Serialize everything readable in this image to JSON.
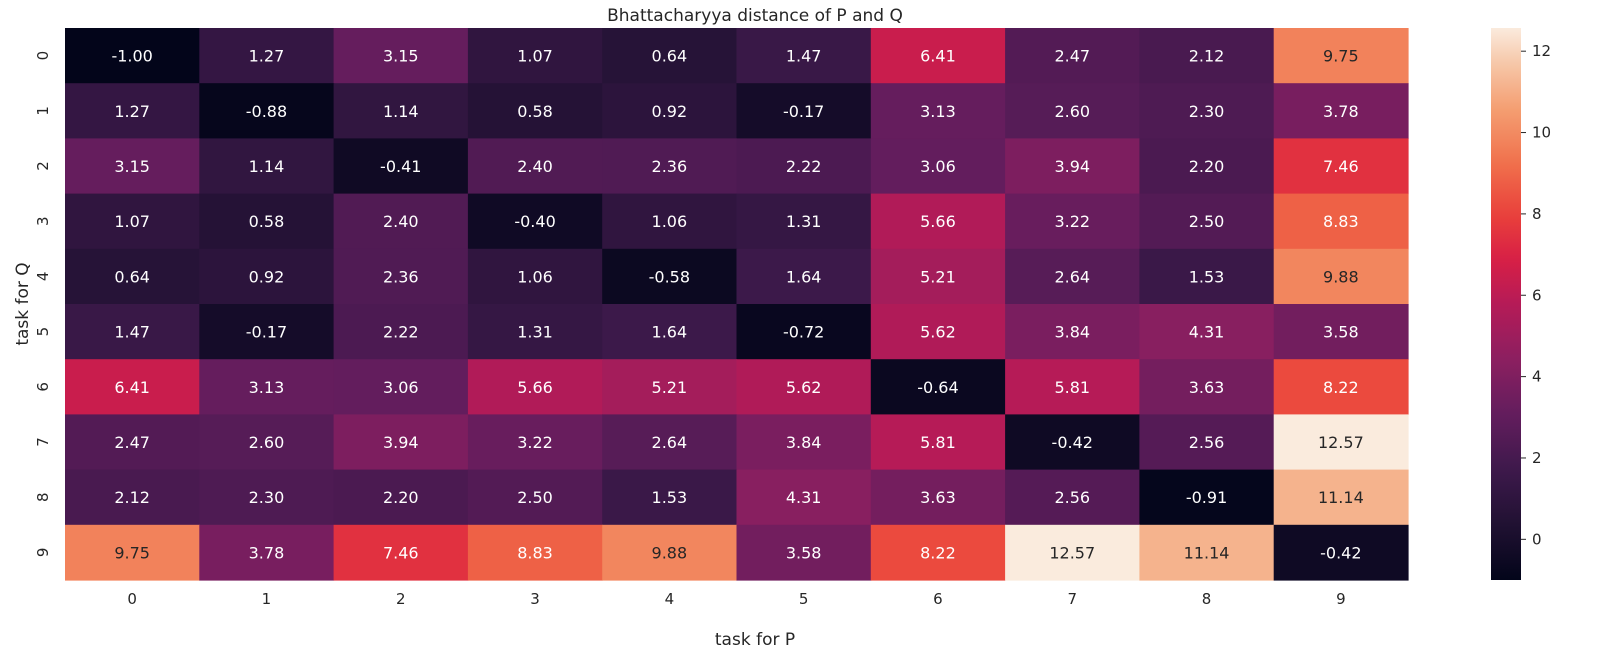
{
  "chart_data": {
    "type": "heatmap",
    "title": "Bhattacharyya distance of P and Q",
    "xlabel": "task for P",
    "ylabel": "task for Q",
    "x_categories": [
      "0",
      "1",
      "2",
      "3",
      "4",
      "5",
      "6",
      "7",
      "8",
      "9"
    ],
    "y_categories": [
      "0",
      "1",
      "2",
      "3",
      "4",
      "5",
      "6",
      "7",
      "8",
      "9"
    ],
    "values": [
      [
        -1.0,
        1.27,
        3.15,
        1.07,
        0.64,
        1.47,
        6.41,
        2.47,
        2.12,
        9.75
      ],
      [
        1.27,
        -0.88,
        1.14,
        0.58,
        0.92,
        -0.17,
        3.13,
        2.6,
        2.3,
        3.78
      ],
      [
        3.15,
        1.14,
        -0.41,
        2.4,
        2.36,
        2.22,
        3.06,
        3.94,
        2.2,
        7.46
      ],
      [
        1.07,
        0.58,
        2.4,
        -0.4,
        1.06,
        1.31,
        5.66,
        3.22,
        2.5,
        8.83
      ],
      [
        0.64,
        0.92,
        2.36,
        1.06,
        -0.58,
        1.64,
        5.21,
        2.64,
        1.53,
        9.88
      ],
      [
        1.47,
        -0.17,
        2.22,
        1.31,
        1.64,
        -0.72,
        5.62,
        3.84,
        4.31,
        3.58
      ],
      [
        6.41,
        3.13,
        3.06,
        5.66,
        5.21,
        5.62,
        -0.64,
        5.81,
        3.63,
        8.22
      ],
      [
        2.47,
        2.6,
        3.94,
        3.22,
        2.64,
        3.84,
        5.81,
        -0.42,
        2.56,
        12.57
      ],
      [
        2.12,
        2.3,
        2.2,
        2.5,
        1.53,
        4.31,
        3.63,
        2.56,
        -0.91,
        11.14
      ],
      [
        9.75,
        3.78,
        7.46,
        8.83,
        9.88,
        3.58,
        8.22,
        12.57,
        11.14,
        -0.42
      ]
    ],
    "value_format": "0.00",
    "colormap": "rocket",
    "vmin": -1.0,
    "vmax": 12.57,
    "colorbar_ticks": [
      0,
      2,
      4,
      6,
      8,
      10,
      12
    ]
  }
}
